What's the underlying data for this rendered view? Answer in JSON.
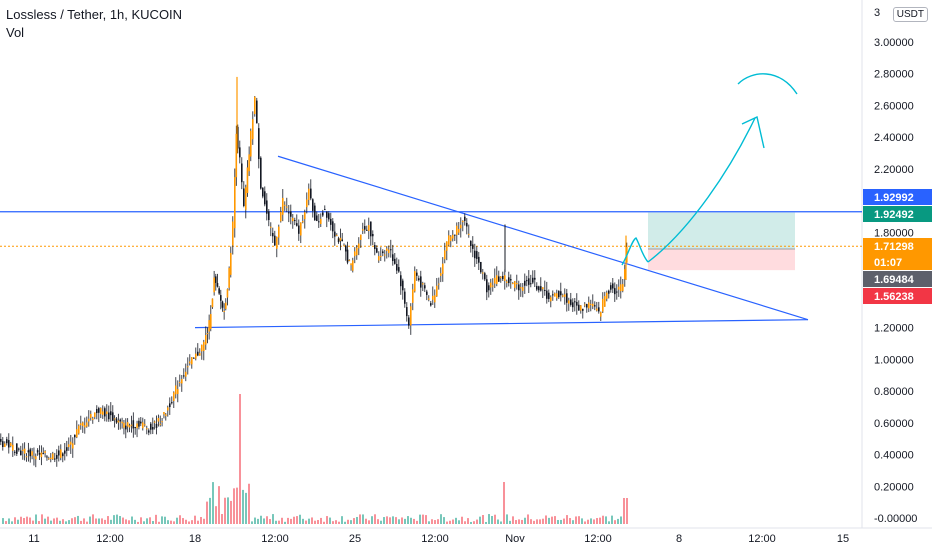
{
  "header": {
    "symbol_line": "Lossless / Tether, 1h, KUCOIN",
    "volume_label": "Vol"
  },
  "currency_button": "USDT",
  "axis_top_partial": "3",
  "chart_data": {
    "type": "candlestick",
    "ylim": [
      -0.05,
      3.2
    ],
    "y_ticks": [
      "3.00000",
      "2.80000",
      "2.60000",
      "2.40000",
      "2.20000",
      "2.00000",
      "1.80000",
      "1.60000",
      "1.40000",
      "1.20000",
      "1.00000",
      "0.80000",
      "0.60000",
      "0.40000",
      "0.20000",
      "-0.00000"
    ],
    "x_ticks": [
      "11",
      "12:00",
      "18",
      "12:00",
      "25",
      "12:00",
      "Nov",
      "12:00",
      "8",
      "12:00",
      "15"
    ],
    "price_tags": [
      {
        "label": "1.92992",
        "value": 1.92992,
        "color": "#2962ff"
      },
      {
        "label": "1.92492",
        "value": 1.92492,
        "color": "#089981"
      },
      {
        "label": "1.71298",
        "value": 1.71298,
        "color": "#ff9800"
      },
      {
        "label": "01:07",
        "value": 1.71298,
        "color": "#ff9800"
      },
      {
        "label": "1.69484",
        "value": 1.69484,
        "color": "#5d606b"
      },
      {
        "label": "1.56238",
        "value": 1.56238,
        "color": "#f23645"
      }
    ],
    "price_path": [
      [
        0,
        0.48
      ],
      [
        10,
        0.46
      ],
      [
        22,
        0.42
      ],
      [
        35,
        0.4
      ],
      [
        48,
        0.39
      ],
      [
        60,
        0.4
      ],
      [
        70,
        0.44
      ],
      [
        78,
        0.55
      ],
      [
        88,
        0.62
      ],
      [
        100,
        0.68
      ],
      [
        112,
        0.64
      ],
      [
        125,
        0.58
      ],
      [
        140,
        0.6
      ],
      [
        152,
        0.56
      ],
      [
        165,
        0.64
      ],
      [
        175,
        0.78
      ],
      [
        185,
        0.92
      ],
      [
        195,
        1.0
      ],
      [
        205,
        1.1
      ],
      [
        210,
        1.22
      ],
      [
        215,
        1.5
      ],
      [
        220,
        1.4
      ],
      [
        225,
        1.3
      ],
      [
        230,
        1.55
      ],
      [
        234,
        1.85
      ],
      [
        237,
        2.45
      ],
      [
        241,
        2.25
      ],
      [
        245,
        1.95
      ],
      [
        250,
        2.3
      ],
      [
        256,
        2.65
      ],
      [
        262,
        2.1
      ],
      [
        270,
        1.85
      ],
      [
        276,
        1.72
      ],
      [
        284,
        2.0
      ],
      [
        292,
        1.9
      ],
      [
        300,
        1.8
      ],
      [
        310,
        2.05
      ],
      [
        318,
        1.85
      ],
      [
        326,
        1.95
      ],
      [
        336,
        1.8
      ],
      [
        345,
        1.7
      ],
      [
        352,
        1.58
      ],
      [
        362,
        1.8
      ],
      [
        370,
        1.85
      ],
      [
        378,
        1.65
      ],
      [
        390,
        1.7
      ],
      [
        400,
        1.55
      ],
      [
        410,
        1.22
      ],
      [
        416,
        1.55
      ],
      [
        424,
        1.45
      ],
      [
        432,
        1.35
      ],
      [
        440,
        1.5
      ],
      [
        448,
        1.75
      ],
      [
        456,
        1.8
      ],
      [
        464,
        1.9
      ],
      [
        472,
        1.72
      ],
      [
        480,
        1.6
      ],
      [
        488,
        1.45
      ],
      [
        496,
        1.5
      ],
      [
        504,
        1.52
      ],
      [
        512,
        1.48
      ],
      [
        522,
        1.46
      ],
      [
        532,
        1.5
      ],
      [
        542,
        1.44
      ],
      [
        552,
        1.38
      ],
      [
        562,
        1.42
      ],
      [
        572,
        1.35
      ],
      [
        582,
        1.32
      ],
      [
        592,
        1.36
      ],
      [
        600,
        1.28
      ],
      [
        606,
        1.4
      ],
      [
        612,
        1.46
      ],
      [
        618,
        1.42
      ],
      [
        624,
        1.48
      ],
      [
        628,
        1.71
      ]
    ],
    "volume_ylim": [
      0,
      1
    ],
    "volume_max_label": "spikes near 18-20"
  },
  "colors": {
    "up": "#089981",
    "down": "#f23645",
    "candle_body": "#ff9800",
    "candle_wick": "#131722",
    "trend": "#2962ff",
    "horizontal": "#2962ff",
    "current": "#ff9800",
    "drawing": "#00bcd4",
    "profit_zone": "#b2dfdb",
    "loss_zone": "#ffcdd2"
  }
}
